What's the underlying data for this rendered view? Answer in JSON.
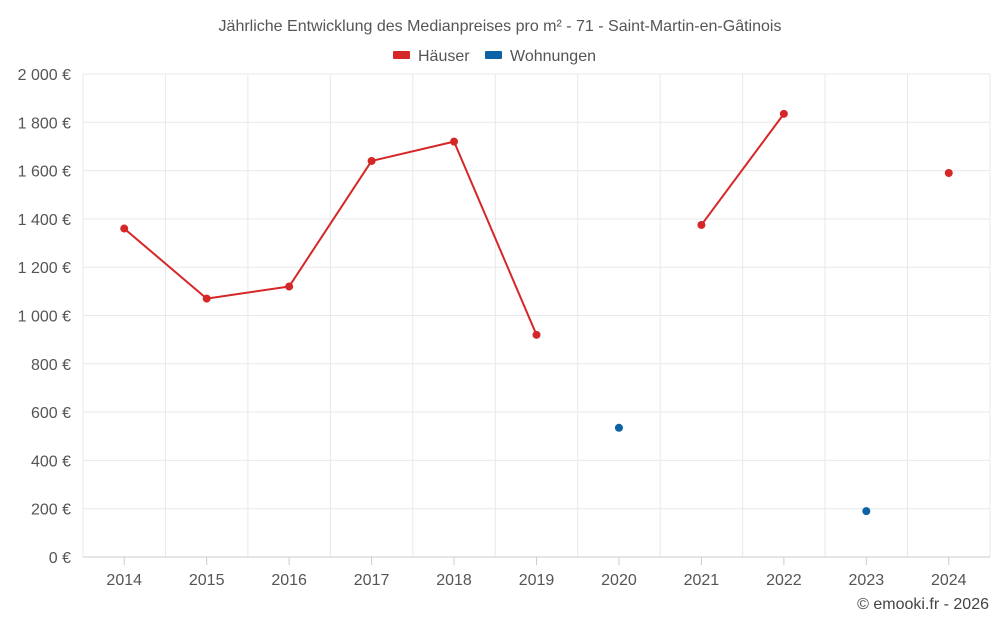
{
  "chart_data": {
    "type": "line",
    "title": "Jährliche Entwicklung des Medianpreises pro m² - 71 - Saint-Martin-en-Gâtinois",
    "categories": [
      "2014",
      "2015",
      "2016",
      "2017",
      "2018",
      "2019",
      "2020",
      "2021",
      "2022",
      "2023",
      "2024"
    ],
    "series": [
      {
        "name": "Häuser",
        "color": "#d62728",
        "values": [
          1360,
          1070,
          1120,
          1640,
          1720,
          920,
          null,
          1375,
          1835,
          null,
          1590
        ]
      },
      {
        "name": "Wohnungen",
        "color": "#0b62a4",
        "values": [
          null,
          null,
          null,
          null,
          null,
          null,
          535,
          null,
          null,
          190,
          null
        ]
      }
    ],
    "yticks": [
      "0 €",
      "200 €",
      "400 €",
      "600 €",
      "800 €",
      "1 000 €",
      "1 200 €",
      "1 400 €",
      "1 600 €",
      "1 800 €",
      "2 000 €"
    ],
    "ylim": [
      0,
      2000
    ],
    "grid": true,
    "legend_position": "top-center"
  },
  "credit": "© emooki.fr - 2026"
}
